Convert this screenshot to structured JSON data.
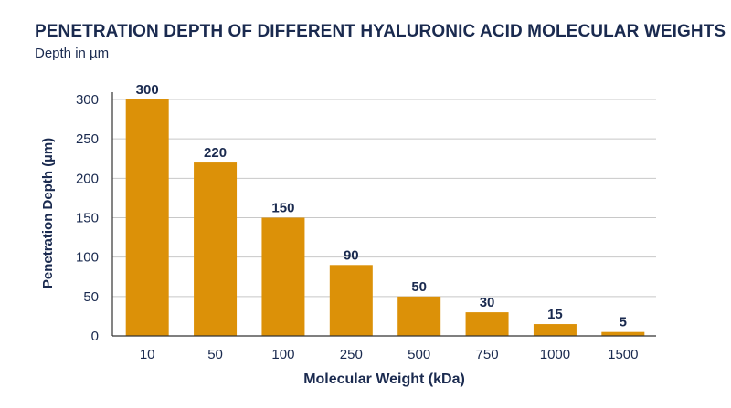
{
  "chart_data": {
    "type": "bar",
    "title": "PENETRATION DEPTH OF DIFFERENT HYALURONIC ACID MOLECULAR WEIGHTS",
    "subtitle": "Depth in µm",
    "xlabel": "Molecular Weight (kDa)",
    "ylabel": "Penetration Depth (µm)",
    "categories": [
      "10",
      "50",
      "100",
      "250",
      "500",
      "750",
      "1000",
      "1500"
    ],
    "values": [
      300,
      220,
      150,
      90,
      50,
      30,
      15,
      5
    ],
    "ylim": [
      0,
      300
    ],
    "yticks": [
      0,
      50,
      100,
      150,
      200,
      250,
      300
    ],
    "grid": true,
    "colors": {
      "bar": "#dc9108",
      "text": "#1a2a4f",
      "grid": "#c8c8c8",
      "axis": "#333333"
    }
  }
}
